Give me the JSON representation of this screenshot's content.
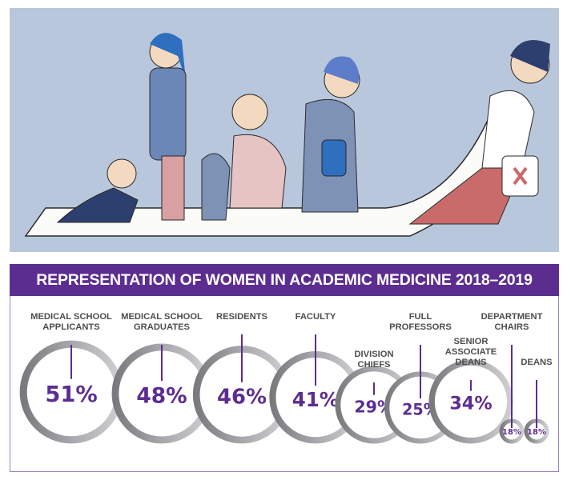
{
  "chart_data": {
    "type": "bubble",
    "title": "REPRESENTATION OF WOMEN IN ACADEMIC MEDICINE 2018–2019",
    "unit": "%",
    "categories": [
      "MEDICAL SCHOOL APPLICANTS",
      "MEDICAL SCHOOL GRADUATES",
      "RESIDENTS",
      "FACULTY",
      "DIVISION CHIEFS",
      "FULL PROFESSORS",
      "SENIOR ASSOCIATE DEANS",
      "DEPARTMENT CHAIRS",
      "DEANS"
    ],
    "values": [
      51,
      48,
      46,
      41,
      29,
      25,
      34,
      18,
      18
    ],
    "label_lines": [
      [
        "MEDICAL SCHOOL",
        "APPLICANTS"
      ],
      [
        "MEDICAL SCHOOL",
        "GRADUATES"
      ],
      [
        "RESIDENTS"
      ],
      [
        "FACULTY"
      ],
      [
        "DIVISION",
        "CHIEFS"
      ],
      [
        "FULL",
        "PROFESSORS"
      ],
      [
        "SENIOR",
        "ASSOCIATE",
        "DEANS"
      ],
      [
        "DEPARTMENT",
        "CHAIRS"
      ],
      [
        "DEANS"
      ]
    ],
    "value_labels": [
      "51%",
      "48%",
      "46%",
      "41%",
      "29%",
      "25%",
      "34%",
      "18%",
      "18%"
    ],
    "colors": {
      "banner": "#5c2d91",
      "value_text": "#5c2d91",
      "label_text": "#4d4d4f",
      "ring": "#a7a7aa",
      "border": "#9b83c4"
    }
  }
}
